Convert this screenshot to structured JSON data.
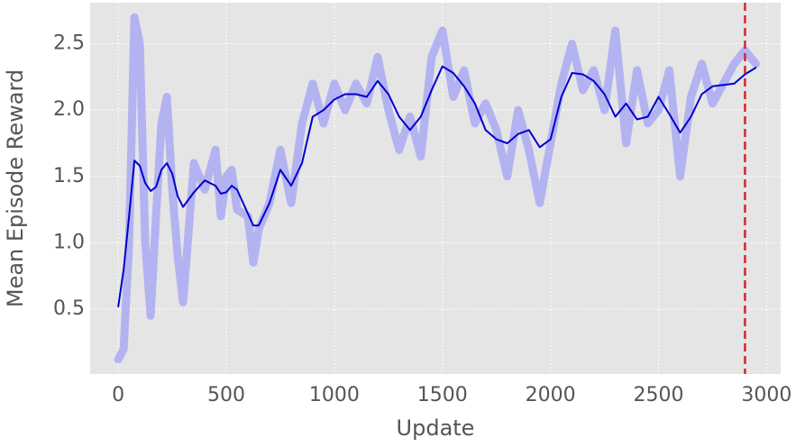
{
  "chart_data": {
    "type": "line",
    "x_label": "Update",
    "y_label": "Mean Episode Reward",
    "x": [
      0,
      25,
      50,
      75,
      100,
      125,
      150,
      175,
      200,
      225,
      250,
      275,
      300,
      350,
      400,
      450,
      475,
      500,
      525,
      550,
      600,
      625,
      650,
      700,
      750,
      800,
      850,
      900,
      950,
      1000,
      1050,
      1100,
      1150,
      1200,
      1250,
      1300,
      1350,
      1400,
      1450,
      1500,
      1550,
      1600,
      1650,
      1700,
      1750,
      1800,
      1850,
      1900,
      1950,
      2000,
      2050,
      2100,
      2150,
      2200,
      2250,
      2300,
      2350,
      2400,
      2450,
      2500,
      2550,
      2600,
      2650,
      2700,
      2750,
      2800,
      2850,
      2900,
      2950
    ],
    "series": [
      {
        "color": "#b3b3f2",
        "width": 9,
        "values": [
          0.12,
          0.2,
          1.0,
          2.7,
          2.5,
          1.0,
          0.45,
          1.2,
          1.9,
          2.1,
          1.4,
          0.9,
          0.55,
          1.6,
          1.4,
          1.7,
          1.2,
          1.5,
          1.55,
          1.25,
          1.2,
          0.85,
          1.1,
          1.3,
          1.7,
          1.3,
          1.9,
          2.2,
          1.9,
          2.2,
          2.0,
          2.2,
          2.05,
          2.4,
          2.0,
          1.7,
          1.95,
          1.65,
          2.4,
          2.6,
          2.1,
          2.3,
          1.9,
          2.05,
          1.85,
          1.5,
          2.0,
          1.7,
          1.3,
          1.75,
          2.2,
          2.5,
          2.15,
          2.3,
          2.0,
          2.6,
          1.75,
          2.3,
          1.9,
          2.0,
          2.3,
          1.5,
          2.1,
          2.35,
          2.05,
          2.2,
          2.35,
          2.45,
          2.35
        ]
      },
      {
        "color": "#0000cc",
        "width": 2,
        "values": [
          0.52,
          0.8,
          1.2,
          1.62,
          1.58,
          1.45,
          1.39,
          1.42,
          1.55,
          1.6,
          1.52,
          1.35,
          1.27,
          1.38,
          1.47,
          1.43,
          1.37,
          1.38,
          1.43,
          1.4,
          1.22,
          1.13,
          1.13,
          1.3,
          1.55,
          1.43,
          1.6,
          1.95,
          2.0,
          2.08,
          2.12,
          2.12,
          2.1,
          2.22,
          2.12,
          1.95,
          1.85,
          1.95,
          2.15,
          2.33,
          2.28,
          2.18,
          2.05,
          1.85,
          1.78,
          1.75,
          1.82,
          1.85,
          1.72,
          1.78,
          2.1,
          2.28,
          2.27,
          2.22,
          2.12,
          1.95,
          2.05,
          1.93,
          1.95,
          2.1,
          1.97,
          1.83,
          1.95,
          2.12,
          2.18,
          2.19,
          2.2,
          2.27,
          2.32
        ]
      }
    ],
    "vlines": [
      {
        "x": 2900,
        "color": "#d62728"
      }
    ],
    "xlim": [
      -130,
      3065
    ],
    "ylim": [
      0.01,
      2.81
    ],
    "xticks": [
      0,
      500,
      1000,
      1500,
      2000,
      2500,
      3000
    ],
    "yticks": [
      0.5,
      {
        "value": 1.0,
        "label": "1.0"
      },
      1.5,
      {
        "value": 2.0,
        "label": "2.0"
      },
      2.5
    ],
    "grid": true
  }
}
